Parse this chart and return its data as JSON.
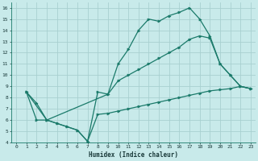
{
  "xlabel": "Humidex (Indice chaleur)",
  "bg_color": "#c8eaea",
  "grid_color": "#a8d0d0",
  "line_color": "#1a7a6a",
  "xlim": [
    -0.5,
    23.5
  ],
  "ylim": [
    4,
    16.5
  ],
  "xticks": [
    0,
    1,
    2,
    3,
    4,
    5,
    6,
    7,
    8,
    9,
    10,
    11,
    12,
    13,
    14,
    15,
    16,
    17,
    18,
    19,
    20,
    21,
    22,
    23
  ],
  "yticks": [
    4,
    5,
    6,
    7,
    8,
    9,
    10,
    11,
    12,
    13,
    14,
    15,
    16
  ],
  "curve1_x": [
    1,
    2,
    3,
    4,
    5,
    6,
    7,
    8,
    9,
    10,
    11,
    12,
    13,
    14,
    15,
    16,
    17,
    18,
    19,
    20,
    21,
    22,
    23
  ],
  "curve1_y": [
    8.5,
    7.5,
    6.0,
    5.7,
    5.4,
    5.1,
    4.1,
    8.5,
    8.3,
    11.0,
    12.3,
    14.0,
    15.0,
    14.8,
    15.3,
    15.6,
    16.0,
    15.0,
    13.5,
    11.0,
    10.0,
    9.0,
    8.8
  ],
  "curve2_x": [
    1,
    2,
    3,
    4,
    5,
    6,
    7,
    8,
    9,
    10,
    11,
    12,
    13,
    14,
    15,
    16,
    17,
    18,
    19,
    20,
    21,
    22,
    23
  ],
  "curve2_y": [
    8.5,
    6.0,
    6.0,
    5.7,
    5.4,
    5.1,
    4.1,
    6.5,
    6.6,
    6.8,
    7.0,
    7.2,
    7.4,
    7.6,
    7.8,
    8.0,
    8.2,
    8.4,
    8.6,
    8.7,
    8.8,
    9.0,
    8.8
  ],
  "curve3_x": [
    1,
    3,
    9,
    10,
    11,
    12,
    13,
    14,
    15,
    16,
    17,
    18,
    19,
    20,
    21,
    22,
    23
  ],
  "curve3_y": [
    8.5,
    6.0,
    8.3,
    9.5,
    10.0,
    10.5,
    11.0,
    11.5,
    12.0,
    12.5,
    13.2,
    13.5,
    13.3,
    11.0,
    10.0,
    9.0,
    8.8
  ]
}
